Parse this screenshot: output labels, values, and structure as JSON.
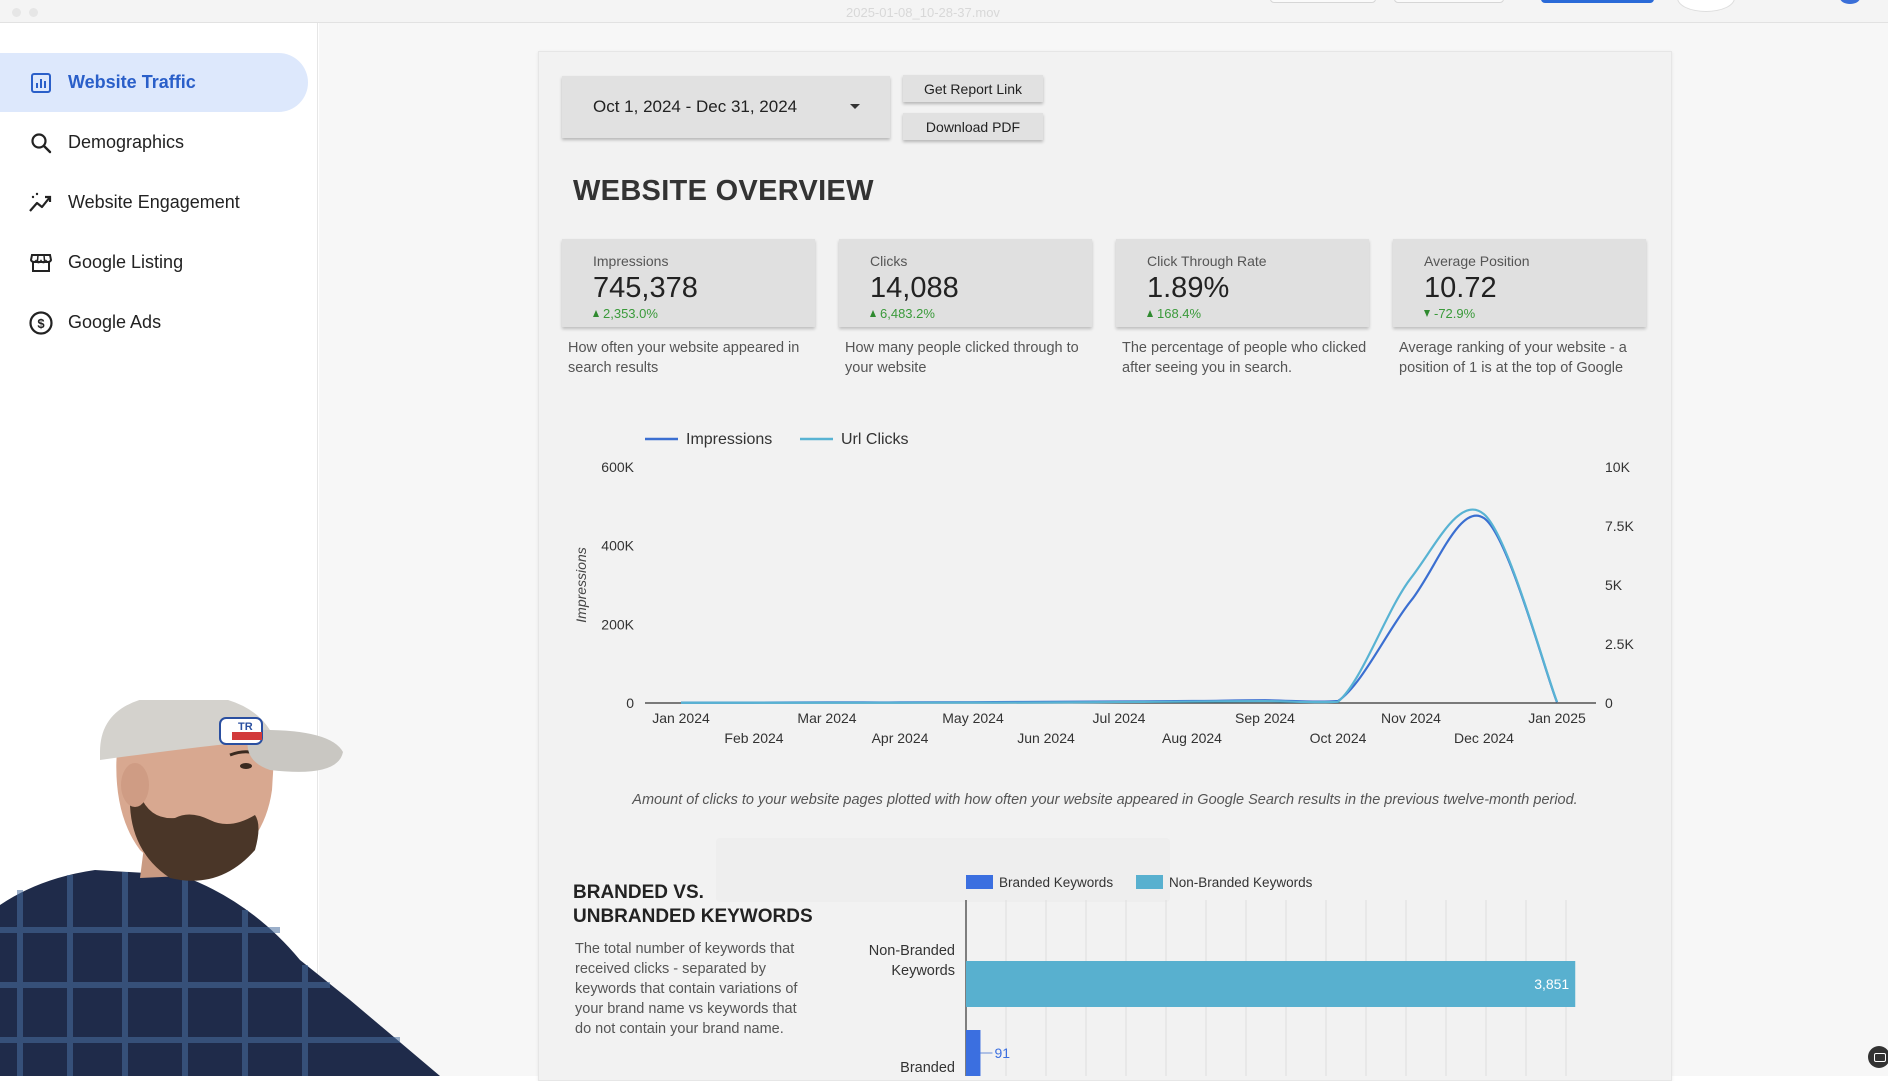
{
  "window": {
    "title": "2025-01-08_10-28-37.mov"
  },
  "sidebar": {
    "items": [
      {
        "label": "Website Traffic",
        "icon": "bar-chart-icon",
        "active": true
      },
      {
        "label": "Demographics",
        "icon": "search-icon",
        "active": false
      },
      {
        "label": "Website Engagement",
        "icon": "trending-up-icon",
        "active": false
      },
      {
        "label": "Google Listing",
        "icon": "storefront-icon",
        "active": false
      },
      {
        "label": "Google Ads",
        "icon": "dollar-circle-icon",
        "active": false
      }
    ]
  },
  "controls": {
    "date_range": "Oct 1, 2024 - Dec 31, 2024",
    "report_link_label": "Get Report Link",
    "download_label": "Download PDF"
  },
  "overview": {
    "title": "WEBSITE OVERVIEW",
    "kpis": [
      {
        "label": "Impressions",
        "value": "745,378",
        "delta": "2,353.0%",
        "direction": "up",
        "description": "How often your website appeared in search results"
      },
      {
        "label": "Clicks",
        "value": "14,088",
        "delta": "6,483.2%",
        "direction": "up",
        "description": "How many people clicked through to your website"
      },
      {
        "label": "Click Through Rate",
        "value": "1.89%",
        "delta": "168.4%",
        "direction": "up",
        "description": "The percentage of people who clicked after seeing you in search."
      },
      {
        "label": "Average Position",
        "value": "10.72",
        "delta": "-72.9%",
        "direction": "down",
        "description": "Average ranking of your website - a position of 1 is at the top of Google"
      }
    ]
  },
  "chart_data": [
    {
      "type": "line",
      "title": "",
      "ylabel": "Impressions",
      "y2label": "",
      "legend_position": "top-left",
      "ylim": [
        0,
        600000
      ],
      "y2lim": [
        0,
        10000
      ],
      "y_ticks": [
        "0",
        "200K",
        "400K",
        "600K"
      ],
      "y2_ticks": [
        "0",
        "2.5K",
        "5K",
        "7.5K",
        "10K"
      ],
      "x": [
        "Jan 2024",
        "Feb 2024",
        "Mar 2024",
        "Apr 2024",
        "May 2024",
        "Jun 2024",
        "Jul 2024",
        "Aug 2024",
        "Sep 2024",
        "Oct 2024",
        "Nov 2024",
        "Dec 2024",
        "Jan 2025"
      ],
      "series": [
        {
          "name": "Impressions",
          "axis": "left",
          "color": "#3b6fd1",
          "values": [
            1000,
            1000,
            1500,
            1500,
            2000,
            3000,
            4000,
            5000,
            7000,
            5000,
            260000,
            470000,
            2000
          ]
        },
        {
          "name": "Url Clicks",
          "axis": "right",
          "color": "#58b3d3",
          "values": [
            10,
            10,
            12,
            12,
            15,
            20,
            40,
            60,
            80,
            50,
            5300,
            8000,
            50
          ]
        }
      ],
      "grid": false
    },
    {
      "type": "bar",
      "orientation": "horizontal",
      "categories": [
        "Non-Branded Keywords",
        "Branded"
      ],
      "series": [
        {
          "name": "Branded Keywords",
          "color": "#3b6fe0",
          "values": [
            0,
            91
          ]
        },
        {
          "name": "Non-Branded Keywords",
          "color": "#58b0cf",
          "values": [
            3851,
            0
          ]
        }
      ],
      "xlim": [
        0,
        4000
      ],
      "legend_position": "top",
      "grid": true
    }
  ],
  "chart_caption": "Amount of clicks to your website pages plotted with how often your website appeared in Google Search results in the previous twelve-month period.",
  "branded": {
    "title_line1": "BRANDED VS.",
    "title_line2": "UNBRANDED KEYWORDS",
    "description": "The total number of keywords that received clicks - separated by keywords that contain variations of your brand name vs keywords that do not contain your brand name.",
    "labels": {
      "nonbranded_line1": "Non-Branded",
      "nonbranded_line2": "Keywords",
      "branded": "Branded",
      "nonbranded_value": "3,851",
      "branded_value": "91"
    }
  },
  "colors": {
    "accent": "#2a5fc9",
    "active_nav_bg": "#dde8fc",
    "impressions": "#3b6fd1",
    "clicks": "#58b3d3",
    "positive": "#3a9a3a"
  }
}
